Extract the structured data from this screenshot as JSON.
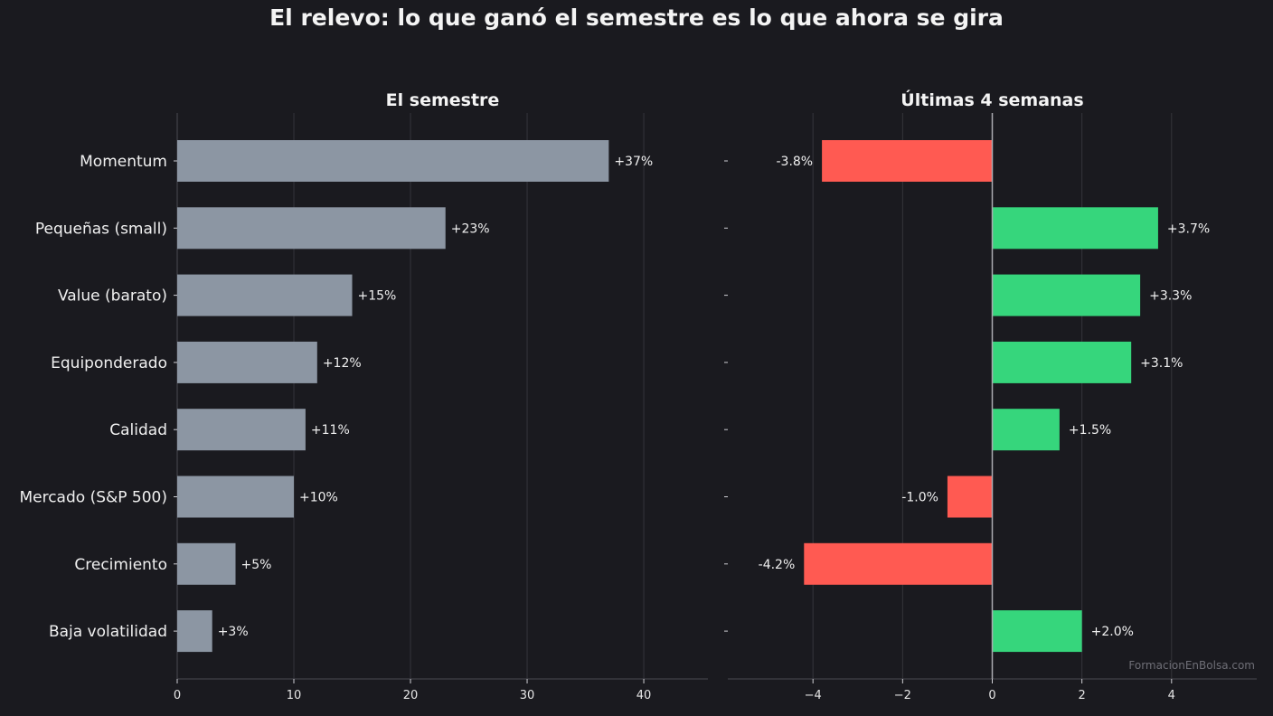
{
  "title": "El relevo: lo que ganó el semestre es lo que ahora se gira",
  "watermark": "FormacionEnBolsa.com",
  "colors": {
    "background": "#1a1a1f",
    "neutral_bar": "#8c96a3",
    "positive_bar": "#36d67c",
    "negative_bar": "#ff5a52",
    "grid": "#34343b",
    "axis": "#4a4a52",
    "zero_line": "#a9a9b0"
  },
  "chart_data": [
    {
      "type": "bar",
      "orientation": "horizontal",
      "title": "El semestre",
      "categories": [
        "Momentum",
        "Pequeñas (small)",
        "Value (barato)",
        "Equiponderado",
        "Calidad",
        "Mercado (S&P 500)",
        "Crecimiento",
        "Baja volatilidad"
      ],
      "values": [
        37,
        23,
        15,
        12,
        11,
        10,
        5,
        3
      ],
      "value_labels": [
        "+37%",
        "+23%",
        "+15%",
        "+12%",
        "+11%",
        "+10%",
        "+5%",
        "+3%"
      ],
      "xticks": [
        0,
        10,
        20,
        30,
        40
      ],
      "xtick_labels": [
        "0",
        "10",
        "20",
        "30",
        "40"
      ],
      "xlim": [
        0,
        45.5
      ],
      "grid": "vertical"
    },
    {
      "type": "bar",
      "orientation": "horizontal",
      "title": "Últimas 4 semanas",
      "categories": [
        "Momentum",
        "Pequeñas (small)",
        "Value (barato)",
        "Equiponderado",
        "Calidad",
        "Mercado (S&P 500)",
        "Crecimiento",
        "Baja volatilidad"
      ],
      "values": [
        -3.8,
        3.7,
        3.3,
        3.1,
        1.5,
        -1.0,
        -4.2,
        2.0
      ],
      "value_labels": [
        "-3.8%",
        "+3.7%",
        "+3.3%",
        "+3.1%",
        "+1.5%",
        "-1.0%",
        "-4.2%",
        "+2.0%"
      ],
      "xticks": [
        -4,
        -2,
        0,
        2,
        4
      ],
      "xtick_labels": [
        "−4",
        "−2",
        "0",
        "2",
        "4"
      ],
      "xlim": [
        -5.9,
        5.9
      ],
      "grid": "vertical",
      "zero_line": true
    }
  ]
}
